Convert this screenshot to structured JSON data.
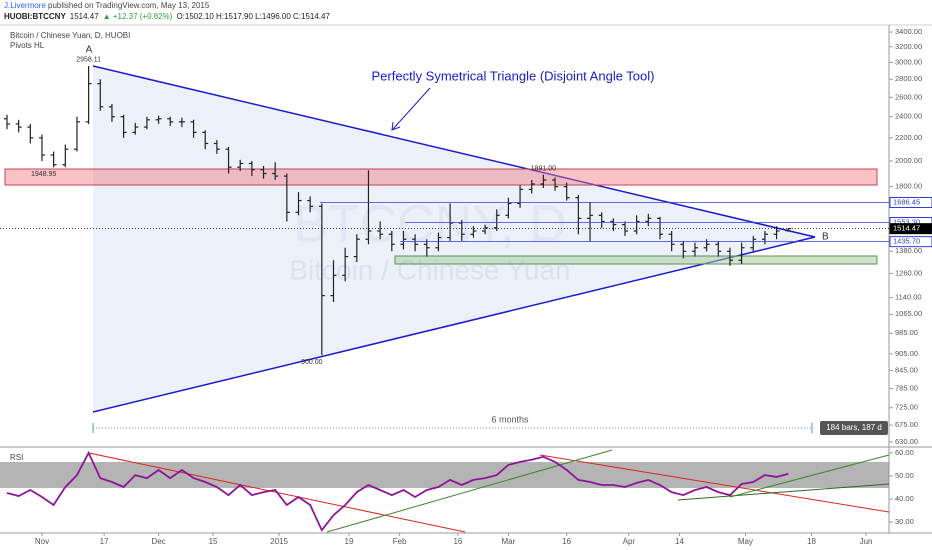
{
  "header": {
    "author": "J.Livermore",
    "published": " published on TradingView.com, May 13, 2015",
    "symbol": "HUOBI:BTCCNY",
    "last": "1514.47",
    "change": "▲ +12.37 (+0.82%)",
    "ohlc": "O:1502.10 H:1517.90 L:1496.00 C:1514.47",
    "pair": "Bitcoin / Chinese Yuan, D, HUOBI",
    "indicator": "Pivots HL"
  },
  "annotations": [
    "Perfectly Symetrical Triangle (Disjoint Angle Tool)",
    "A",
    "B",
    "6 months",
    "184 bars, 187 d"
  ],
  "chart_data": [
    {
      "type": "ohlc",
      "title": "Bitcoin / Chinese Yuan",
      "watermark": "BTCCNY, D",
      "color": "#222222",
      "log_scale": true,
      "xlim": [
        -0.6,
        75.64
      ],
      "ylim": [
        622,
        3500
      ],
      "open": [
        2380,
        2330,
        2300,
        2200,
        2050,
        1970,
        2100,
        2350,
        2750,
        2500,
        2400,
        2250,
        2300,
        2370,
        2380,
        2350,
        2350,
        2250,
        2150,
        2100,
        1950,
        1980,
        1930,
        1900,
        1880,
        1620,
        1700,
        1660,
        1150,
        1250,
        1350,
        1450,
        1500,
        1480,
        1420,
        1450,
        1420,
        1400,
        1460,
        1550,
        1480,
        1500,
        1520,
        1600,
        1680,
        1780,
        1820,
        1850,
        1800,
        1720,
        1580,
        1600,
        1560,
        1540,
        1500,
        1560,
        1580,
        1480,
        1420,
        1380,
        1400,
        1420,
        1380,
        1330,
        1400,
        1450,
        1480,
        1502.1
      ],
      "high": [
        2420,
        2370,
        2330,
        2230,
        2080,
        2140,
        2400,
        2958.11,
        2800,
        2530,
        2420,
        2340,
        2400,
        2410,
        2400,
        2390,
        2370,
        2270,
        2180,
        2120,
        2010,
        2000,
        1960,
        1990,
        1900,
        1760,
        1730,
        1680,
        1330,
        1400,
        1480,
        1925,
        1560,
        1500,
        1500,
        1480,
        1450,
        1490,
        1680,
        1570,
        1530,
        1540,
        1640,
        1720,
        1810,
        1850,
        1891,
        1870,
        1830,
        1740,
        1690,
        1620,
        1580,
        1560,
        1600,
        1610,
        1590,
        1500,
        1440,
        1430,
        1450,
        1440,
        1400,
        1430,
        1470,
        1500,
        1530,
        1517.9
      ],
      "low": [
        2280,
        2250,
        2150,
        2000,
        1948.95,
        1950,
        2080,
        2330,
        2460,
        2350,
        2200,
        2230,
        2280,
        2330,
        2310,
        2300,
        2200,
        2100,
        2060,
        1900,
        1920,
        1880,
        1860,
        1850,
        1560,
        1600,
        1620,
        900,
        1120,
        1220,
        1320,
        1420,
        1450,
        1380,
        1390,
        1380,
        1350,
        1380,
        1440,
        1440,
        1460,
        1480,
        1500,
        1580,
        1650,
        1750,
        1790,
        1770,
        1700,
        1480,
        1440,
        1520,
        1500,
        1470,
        1480,
        1530,
        1450,
        1380,
        1340,
        1350,
        1380,
        1350,
        1300,
        1310,
        1380,
        1420,
        1450,
        1496
      ],
      "close": [
        2330,
        2300,
        2200,
        2050,
        1970,
        2100,
        2350,
        2750,
        2500,
        2400,
        2250,
        2300,
        2370,
        2380,
        2350,
        2350,
        2250,
        2150,
        2100,
        1950,
        1980,
        1930,
        1900,
        1880,
        1620,
        1700,
        1660,
        1150,
        1250,
        1350,
        1450,
        1500,
        1480,
        1420,
        1450,
        1420,
        1400,
        1460,
        1550,
        1480,
        1500,
        1520,
        1600,
        1680,
        1780,
        1820,
        1850,
        1800,
        1720,
        1580,
        1600,
        1560,
        1540,
        1500,
        1560,
        1580,
        1480,
        1420,
        1380,
        1400,
        1420,
        1380,
        1330,
        1400,
        1450,
        1480,
        1500,
        1514.47
      ],
      "high_labels": [
        null,
        null,
        null,
        null,
        null,
        null,
        null,
        "2958.11",
        null,
        null,
        null,
        null,
        null,
        null,
        null,
        null,
        null,
        null,
        null,
        null,
        null,
        null,
        null,
        null,
        null,
        null,
        null,
        null,
        null,
        null,
        null,
        null,
        null,
        null,
        null,
        null,
        null,
        null,
        null,
        null,
        null,
        null,
        null,
        null,
        null,
        null,
        "1891.00",
        null,
        null,
        null,
        null,
        null,
        null,
        null,
        null,
        null,
        null,
        null,
        null,
        null,
        null,
        null,
        null,
        null,
        null,
        null,
        null,
        null
      ],
      "low_labels": [
        null,
        null,
        null,
        null,
        "1948.95",
        null,
        null,
        null,
        null,
        null,
        null,
        null,
        null,
        null,
        null,
        null,
        null,
        null,
        null,
        null,
        null,
        null,
        null,
        null,
        null,
        null,
        null,
        "900.00",
        null,
        null,
        null,
        null,
        null,
        null,
        null,
        null,
        null,
        null,
        null,
        null,
        null,
        null,
        null,
        null,
        null,
        null,
        null,
        null,
        null,
        null,
        null,
        null,
        null,
        null,
        null,
        null,
        null,
        null,
        null,
        null,
        null,
        null,
        null,
        null,
        null,
        null,
        null,
        null
      ],
      "yticks": [
        {
          "value": 3400,
          "label": "3400.00"
        },
        {
          "value": 3200,
          "label": "3200.00"
        },
        {
          "value": 3000,
          "label": "3000.00"
        },
        {
          "value": 2800,
          "label": "2800.00"
        },
        {
          "value": 2600,
          "label": "2600.00"
        },
        {
          "value": 2400,
          "label": "2400.00"
        },
        {
          "value": 2200,
          "label": "2200.00"
        },
        {
          "value": 2000,
          "label": "2000.00"
        },
        {
          "value": 1800,
          "label": "1800.00"
        },
        {
          "value": 1380,
          "label": "1380.00"
        },
        {
          "value": 1260,
          "label": "1260.00"
        },
        {
          "value": 1140,
          "label": "1140.00"
        },
        {
          "value": 1065,
          "label": "1065.00"
        },
        {
          "value": 985,
          "label": "985.00"
        },
        {
          "value": 905,
          "label": "905.00"
        },
        {
          "value": 845,
          "label": "845.00"
        },
        {
          "value": 785,
          "label": "785.00"
        },
        {
          "value": 725,
          "label": "725.00"
        },
        {
          "value": 675,
          "label": "675.00"
        },
        {
          "value": 630,
          "label": "630.00"
        }
      ],
      "levels": [
        {
          "value": 1686.45,
          "label": "1686.45",
          "color": "#2f3fd6"
        },
        {
          "value": 1553.3,
          "label": "1553.30",
          "color": "#2f3fd6"
        },
        {
          "value": 1514.47,
          "label": "1514.47",
          "color": "#000000"
        },
        {
          "value": 1435.7,
          "label": "1435.70",
          "color": "#2f3fd6"
        }
      ]
    },
    {
      "type": "line",
      "title": "RSI",
      "color": "#8e1599",
      "xlim": [
        -0.6,
        75.64
      ],
      "ylim": [
        25.7,
        61.7
      ],
      "values": [
        42.6,
        41.3,
        43.9,
        40.9,
        37.4,
        45.2,
        50.4,
        60,
        49.1,
        47.4,
        45.2,
        50.4,
        49.1,
        52.6,
        49.1,
        52.6,
        49.1,
        47.4,
        45.2,
        41.7,
        46.1,
        41.7,
        43.0,
        43.9,
        37.4,
        40.9,
        37.4,
        26.5,
        33.0,
        37.4,
        43.0,
        46.1,
        43.9,
        41.7,
        43.9,
        40.9,
        43.9,
        45.2,
        48.3,
        46.1,
        48.3,
        49.1,
        50.4,
        54.8,
        56.1,
        57.0,
        58.3,
        56.1,
        52.6,
        48.3,
        47.4,
        46.1,
        46.1,
        45.2,
        47.0,
        48.3,
        46.1,
        43.0,
        41.7,
        43.9,
        45.2,
        43.0,
        41.7,
        46.5,
        47.4,
        50.4,
        49.6,
        50.9
      ],
      "yticks": [
        {
          "value": 60,
          "label": "60.00"
        },
        {
          "value": 50,
          "label": "50.00"
        },
        {
          "value": 40,
          "label": "40.00"
        },
        {
          "value": 30,
          "label": "30.00"
        }
      ],
      "xticks": [
        {
          "value": 3,
          "label": "Nov"
        },
        {
          "value": 8.33,
          "label": "17"
        },
        {
          "value": 13,
          "label": "Dec"
        },
        {
          "value": 17.67,
          "label": "15"
        },
        {
          "value": 23.33,
          "label": "2015"
        },
        {
          "value": 29.33,
          "label": "19"
        },
        {
          "value": 33.67,
          "label": "Feb"
        },
        {
          "value": 38.67,
          "label": "16"
        },
        {
          "value": 43,
          "label": "Mar"
        },
        {
          "value": 48,
          "label": "16"
        },
        {
          "value": 53.33,
          "label": "Apr"
        },
        {
          "value": 57.67,
          "label": "14"
        },
        {
          "value": 63.33,
          "label": "May"
        },
        {
          "value": 69,
          "label": "18"
        },
        {
          "value": 73.67,
          "label": "Jun"
        }
      ]
    }
  ]
}
